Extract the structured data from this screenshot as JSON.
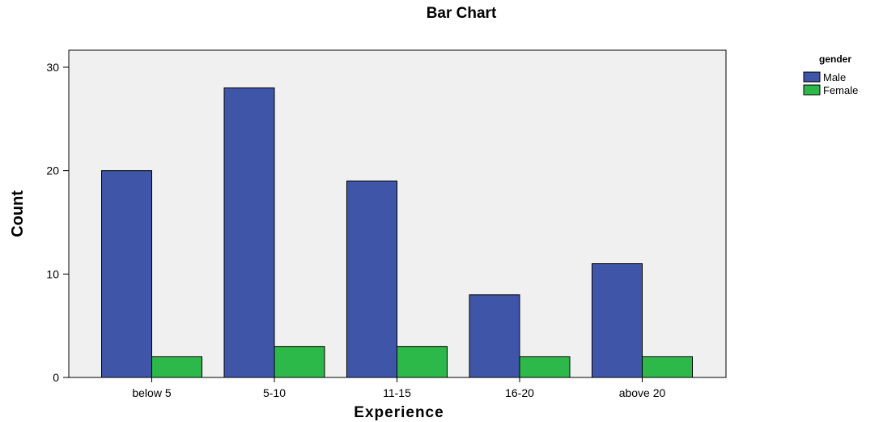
{
  "chart_data": {
    "type": "bar",
    "title": "Bar Chart",
    "xlabel": "Experience",
    "ylabel": "Count",
    "categories": [
      "below 5",
      "5-10",
      "11-15",
      "16-20",
      "above 20"
    ],
    "series": [
      {
        "name": "Male",
        "values": [
          20,
          28,
          19,
          8,
          11
        ],
        "color": "#3f56a8"
      },
      {
        "name": "Female",
        "values": [
          2,
          3,
          3,
          2,
          2
        ],
        "color": "#2db84a"
      }
    ],
    "ylim": [
      0,
      30
    ],
    "yticks": [
      0,
      10,
      20,
      30
    ],
    "legend": {
      "title": "gender",
      "placement": "right"
    },
    "plot_background": "#f0f0f0",
    "grid": false
  }
}
